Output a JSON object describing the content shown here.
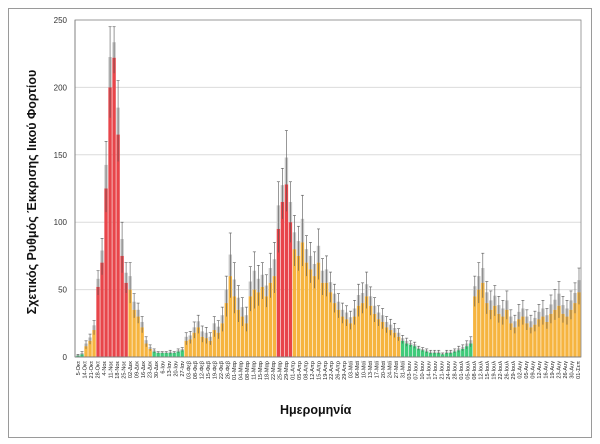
{
  "chart_data": {
    "type": "bar",
    "title": "",
    "xlabel": "Ημερομηνία",
    "ylabel": "Σχετικός Ρυθμός Έκκρισης Ιικού Φορτίου",
    "ylim": [
      0,
      250
    ],
    "yticks": [
      0,
      50,
      100,
      150,
      200,
      250
    ],
    "grid": true,
    "colors": {
      "orange": "#F6B43F",
      "red": "#E8454A",
      "green": "#3FCB7A",
      "upper": "#C8C8C8",
      "error": "#555555"
    },
    "segments": [
      {
        "start": 0,
        "end": 1,
        "group": "green"
      },
      {
        "start": 2,
        "end": 4,
        "group": "orange"
      },
      {
        "start": 5,
        "end": 12,
        "group": "red"
      },
      {
        "start": 13,
        "end": 18,
        "group": "orange"
      },
      {
        "start": 19,
        "end": 26,
        "group": "green"
      },
      {
        "start": 27,
        "end": 49,
        "group": "orange"
      },
      {
        "start": 50,
        "end": 53,
        "group": "red"
      },
      {
        "start": 54,
        "end": 80,
        "group": "orange"
      },
      {
        "start": 81,
        "end": 98,
        "group": "green"
      },
      {
        "start": 99,
        "end": 125,
        "group": "orange"
      }
    ],
    "values": [
      1,
      2,
      8,
      12,
      20,
      52,
      70,
      125,
      200,
      222,
      165,
      75,
      55,
      50,
      35,
      30,
      22,
      10,
      6,
      4,
      3,
      3,
      3,
      3,
      3,
      4,
      5,
      12,
      13,
      18,
      22,
      15,
      14,
      12,
      20,
      18,
      25,
      40,
      60,
      45,
      35,
      30,
      25,
      45,
      50,
      48,
      52,
      45,
      55,
      60,
      95,
      115,
      128,
      100,
      80,
      75,
      85,
      70,
      65,
      60,
      70,
      55,
      55,
      48,
      40,
      35,
      30,
      28,
      25,
      30,
      38,
      40,
      45,
      38,
      32,
      28,
      26,
      22,
      20,
      18,
      15,
      12,
      10,
      9,
      8,
      6,
      5,
      4,
      3,
      3,
      3,
      2,
      3,
      3,
      4,
      5,
      6,
      8,
      10,
      45,
      50,
      55,
      40,
      35,
      38,
      32,
      30,
      35,
      25,
      22,
      28,
      30,
      25,
      22,
      24,
      28,
      30,
      26,
      32,
      35,
      38,
      32,
      30,
      35,
      40,
      48
    ],
    "errors": [
      1,
      2,
      4,
      5,
      7,
      12,
      18,
      35,
      45,
      23,
      40,
      25,
      15,
      20,
      12,
      10,
      8,
      5,
      3,
      2,
      1,
      1,
      1,
      2,
      1,
      2,
      2,
      6,
      6,
      8,
      9,
      8,
      8,
      6,
      10,
      9,
      12,
      20,
      32,
      25,
      18,
      14,
      12,
      22,
      28,
      20,
      18,
      16,
      22,
      25,
      35,
      25,
      40,
      30,
      25,
      22,
      35,
      20,
      20,
      18,
      25,
      18,
      20,
      15,
      14,
      12,
      10,
      10,
      9,
      12,
      16,
      15,
      18,
      14,
      12,
      10,
      10,
      8,
      8,
      7,
      6,
      4,
      4,
      3,
      3,
      2,
      2,
      2,
      2,
      2,
      2,
      1,
      2,
      2,
      2,
      3,
      3,
      4,
      5,
      15,
      20,
      22,
      16,
      14,
      15,
      13,
      12,
      14,
      10,
      9,
      11,
      12,
      10,
      9,
      10,
      11,
      12,
      10,
      14,
      15,
      18,
      13,
      12,
      14,
      15,
      18
    ],
    "x_tick_labels": [
      "5-Οκτ",
      "14-Οκτ",
      "21-Οκτ",
      "28-Οκτ",
      "4-Νοε",
      "11-Νοε",
      "18-Νοε",
      "25-Νοε",
      "02-Δεκ",
      "09-Δεκ",
      "16-Δεκ",
      "23-Δεκ",
      "30-Δεκ",
      "6-Ιαν",
      "13-Ιαν",
      "20-Ιαν",
      "27-Ιαν",
      "03-Φεβ",
      "08-Φεβ",
      "12-Φεβ",
      "15-Φεβ",
      "19-Φεβ",
      "22-Φεβ",
      "26-Φεβ",
      "01-Μαρ",
      "04-Μαρ",
      "08-Μαρ",
      "11-Μαρ",
      "15-Μαρ",
      "18-Μαρ",
      "22-Μαρ",
      "25-Μαρ",
      "29-Μαρ",
      "01-Απρ",
      "05-Απρ",
      "08-Απρ",
      "12-Απρ",
      "15-Απρ",
      "19-Απρ",
      "22-Απρ",
      "26-Απρ",
      "29-Απρ",
      "03-Μαϊ",
      "06-Μαϊ",
      "10-Μαϊ",
      "13-Μαϊ",
      "17-Μαϊ",
      "20-Μαϊ",
      "24-Μαϊ",
      "27-Μαϊ",
      "31-Μαϊ",
      "03-Ιουν",
      "07-Ιουν",
      "10-Ιουν",
      "14-Ιουν",
      "17-Ιουν",
      "21-Ιουν",
      "24-Ιουν",
      "28-Ιουν",
      "01-Ιουλ",
      "05-Ιουλ",
      "08-Ιουλ",
      "12-Ιουλ",
      "15-Ιουλ",
      "19-Ιουλ",
      "22-Ιουλ",
      "26-Ιουλ",
      "29-Ιουλ",
      "02-Αυγ",
      "05-Αυγ",
      "09-Αυγ",
      "12-Αυγ",
      "16-Αυγ",
      "19-Αυγ",
      "23-Αυγ",
      "26-Αυγ",
      "30-Αυγ",
      "01-Σεπ"
    ]
  }
}
